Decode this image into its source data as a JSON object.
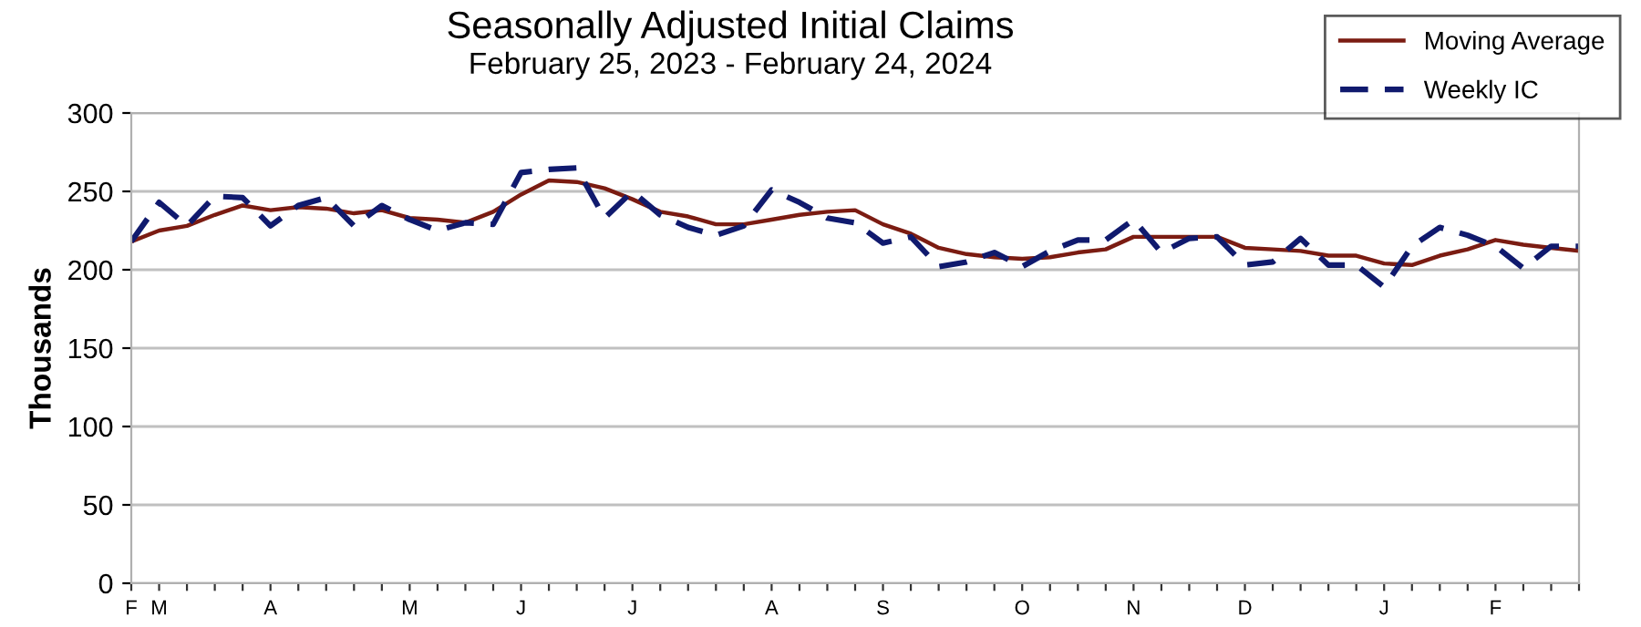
{
  "chart_data": {
    "type": "line",
    "title": "Seasonally Adjusted Initial Claims",
    "subtitle": "February 25, 2023 - February 24, 2024",
    "ylabel": "Thousands",
    "categories": [
      "F",
      "M",
      null,
      null,
      null,
      "A",
      null,
      null,
      null,
      null,
      "M",
      null,
      null,
      null,
      "J",
      null,
      null,
      null,
      "J",
      null,
      null,
      null,
      null,
      "A",
      null,
      null,
      null,
      "S",
      null,
      null,
      null,
      null,
      "O",
      null,
      null,
      null,
      "N",
      null,
      null,
      null,
      "D",
      null,
      null,
      null,
      null,
      "J",
      null,
      null,
      null,
      "F",
      null,
      null,
      null
    ],
    "series": [
      {
        "name": "Moving Average",
        "color": "#7b1c12",
        "line_style": "solid",
        "values": [
          218,
          225,
          228,
          235,
          241,
          238,
          240,
          239,
          236,
          238,
          233,
          232,
          230,
          237,
          248,
          257,
          256,
          252,
          245,
          237,
          234,
          229,
          229,
          232,
          235,
          237,
          238,
          229,
          223,
          214,
          210,
          208,
          207,
          208,
          211,
          213,
          221,
          221,
          221,
          221,
          214,
          213,
          212,
          209,
          209,
          204,
          203,
          209,
          213,
          219,
          216,
          214,
          212
        ]
      },
      {
        "name": "Weekly IC",
        "color": "#101a6e",
        "line_style": "dashed",
        "values": [
          218,
          243,
          228,
          247,
          246,
          228,
          241,
          246,
          228,
          241,
          232,
          225,
          230,
          229,
          262,
          264,
          265,
          233,
          250,
          235,
          227,
          222,
          228,
          251,
          243,
          233,
          230,
          217,
          221,
          202,
          205,
          211,
          202,
          212,
          219,
          219,
          232,
          211,
          220,
          221,
          203,
          205,
          220,
          203,
          203,
          189,
          215,
          227,
          222,
          215,
          201,
          215,
          215
        ]
      }
    ],
    "ylim": [
      0,
      300
    ],
    "yticks": [
      0,
      50,
      100,
      150,
      200,
      250,
      300
    ],
    "grid": "y",
    "legend": "top right"
  }
}
